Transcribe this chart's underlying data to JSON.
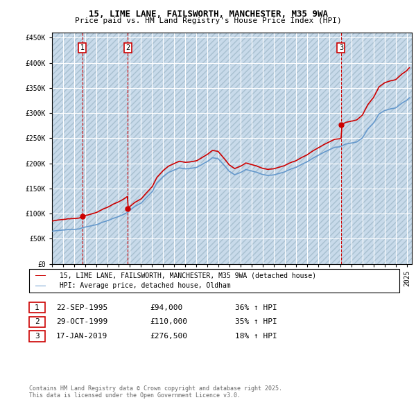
{
  "title": "15, LIME LANE, FAILSWORTH, MANCHESTER, M35 9WA",
  "subtitle": "Price paid vs. HM Land Registry's House Price Index (HPI)",
  "ylim": [
    0,
    460000
  ],
  "ytick_values": [
    0,
    50000,
    100000,
    150000,
    200000,
    250000,
    300000,
    350000,
    400000,
    450000
  ],
  "ytick_labels": [
    "£0",
    "£50K",
    "£100K",
    "£150K",
    "£200K",
    "£250K",
    "£300K",
    "£350K",
    "£400K",
    "£450K"
  ],
  "sale_dates": [
    "1995-09-22",
    "1999-10-29",
    "2019-01-17"
  ],
  "sale_prices": [
    94000,
    110000,
    276500
  ],
  "sale_labels": [
    "1",
    "2",
    "3"
  ],
  "legend_property": "15, LIME LANE, FAILSWORTH, MANCHESTER, M35 9WA (detached house)",
  "legend_hpi": "HPI: Average price, detached house, Oldham",
  "table_data": [
    [
      "1",
      "22-SEP-1995",
      "£94,000",
      "36% ↑ HPI"
    ],
    [
      "2",
      "29-OCT-1999",
      "£110,000",
      "35% ↑ HPI"
    ],
    [
      "3",
      "17-JAN-2019",
      "£276,500",
      "18% ↑ HPI"
    ]
  ],
  "footnote": "Contains HM Land Registry data © Crown copyright and database right 2025.\nThis data is licensed under the Open Government Licence v3.0.",
  "property_line_color": "#cc0000",
  "hpi_line_color": "#6699cc",
  "plot_bg_color": "#ddeeff",
  "hatch_bg_color": "#c8d8e8",
  "grid_color": "#ffffff",
  "sale_marker_color": "#cc0000",
  "vline_color": "#cc0000",
  "box_color": "#cc0000",
  "x_start_year": 1993,
  "x_end_year": 2025
}
